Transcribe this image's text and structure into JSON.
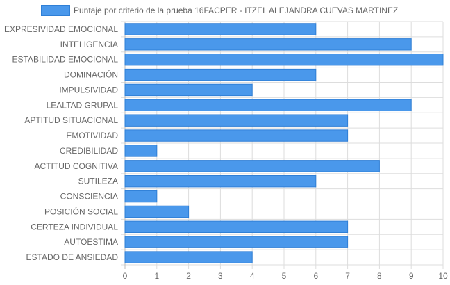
{
  "chart_data": {
    "type": "bar",
    "orientation": "horizontal",
    "title": "",
    "xlabel": "",
    "ylabel": "",
    "xlim": [
      0,
      10
    ],
    "x_ticks": [
      0,
      1,
      2,
      3,
      4,
      5,
      6,
      7,
      8,
      9,
      10
    ],
    "grid": true,
    "legend_position": "top-center",
    "categories": [
      "EXPRESIVIDAD EMOCIONAL",
      "INTELIGENCIA",
      "ESTABILIDAD EMOCIONAL",
      "DOMINACIÓN",
      "IMPULSIVIDAD",
      "LEALTAD GRUPAL",
      "APTITUD SITUACIONAL",
      "EMOTIVIDAD",
      "CREDIBILIDAD",
      "ACTITUD COGNITIVA",
      "SUTILEZA",
      "CONSCIENCIA",
      "POSICIÓN SOCIAL",
      "CERTEZA INDIVIDUAL",
      "AUTOESTIMA",
      "ESTADO DE ANSIEDAD"
    ],
    "series": [
      {
        "name": "Puntaje por criterio de la prueba 16FACPER - ITZEL ALEJANDRA CUEVAS MARTINEZ",
        "values": [
          6,
          9,
          10,
          6,
          4,
          9,
          7,
          7,
          1,
          8,
          6,
          1,
          2,
          7,
          7,
          4
        ],
        "color": "#4a98eb",
        "border_color": "#2f7fd6"
      }
    ],
    "grid_color": "#dddddd"
  }
}
